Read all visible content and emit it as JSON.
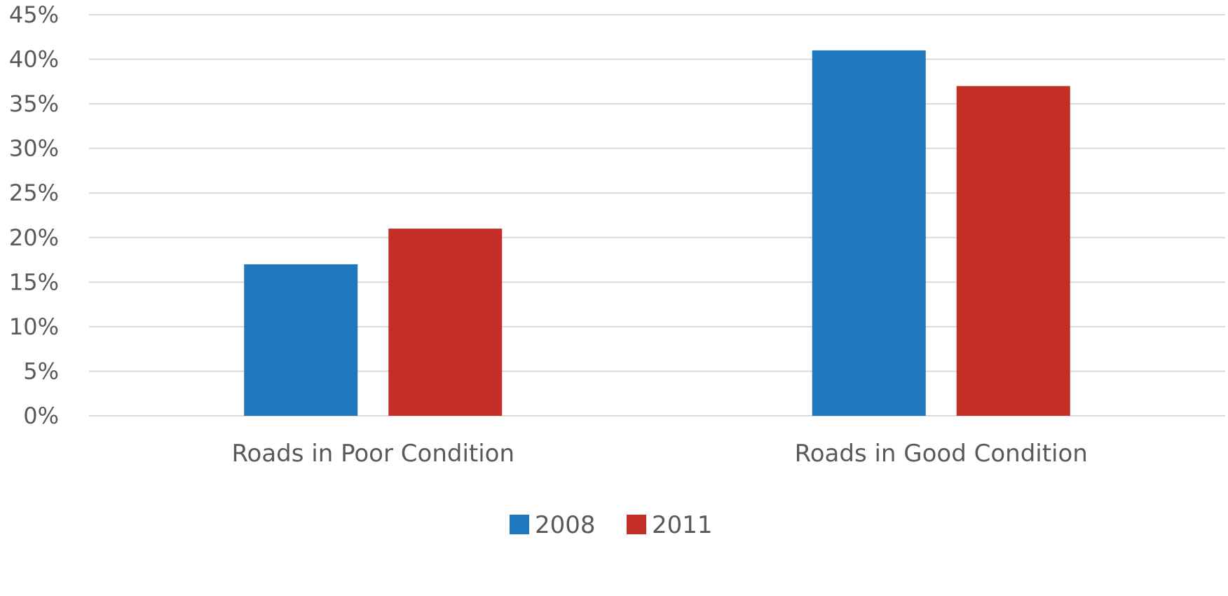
{
  "chart_data": {
    "type": "bar",
    "title": "",
    "xlabel": "",
    "ylabel": "",
    "categories": [
      "Roads in Poor Condition",
      "Roads in Good Condition"
    ],
    "series": [
      {
        "name": "2008",
        "color": "#1f77bd",
        "values": [
          17,
          41
        ]
      },
      {
        "name": "2011",
        "color": "#c32f27",
        "values": [
          21,
          37
        ]
      }
    ],
    "ylim": [
      0,
      45
    ],
    "ytick_step": 5,
    "ytick_format": "percent",
    "grid": true,
    "legend": "bottom-center"
  }
}
